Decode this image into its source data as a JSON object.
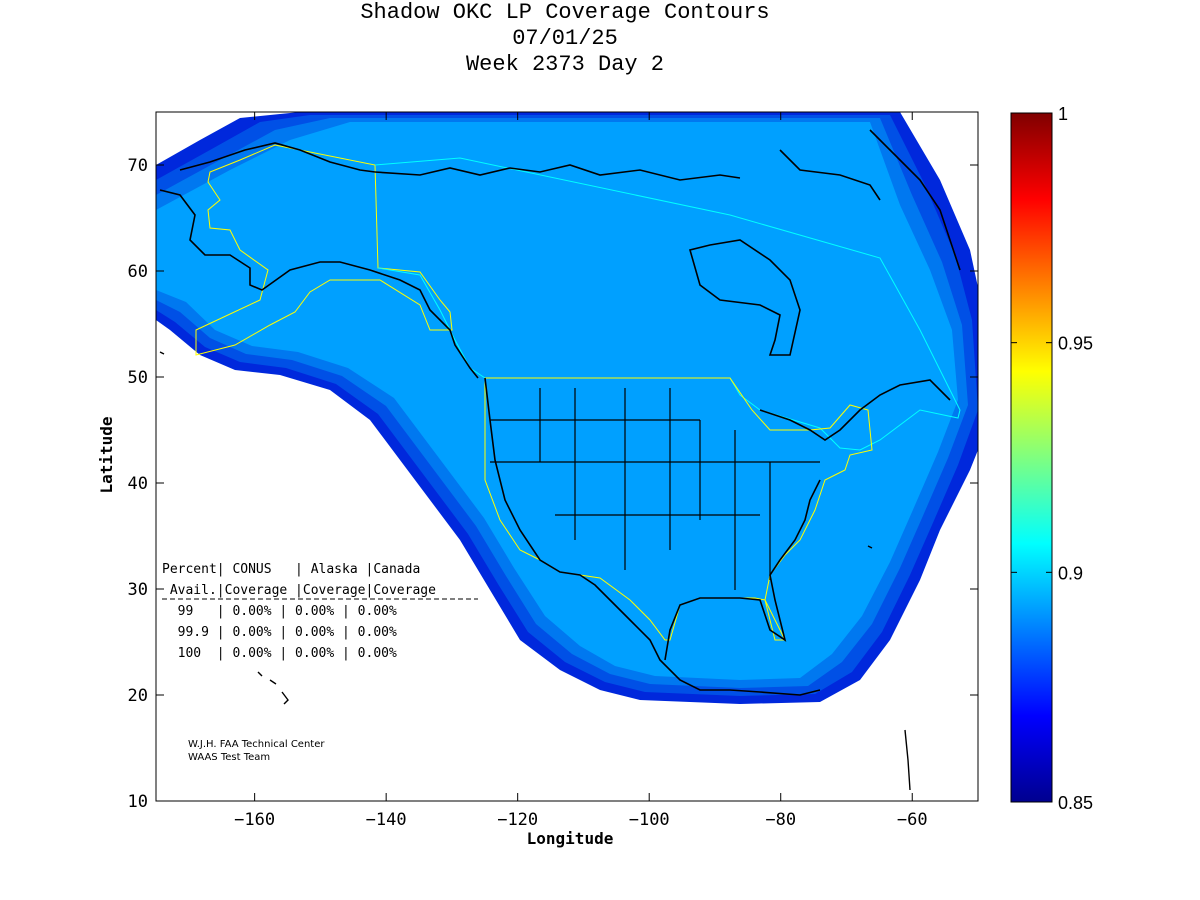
{
  "title": {
    "line1": "Shadow OKC LP Coverage Contours",
    "line2": "07/01/25",
    "line3": "Week 2373 Day 2"
  },
  "axes": {
    "xlabel": "Longitude",
    "ylabel": "Latitude",
    "xlim": [
      -175,
      -50
    ],
    "ylim": [
      10,
      75
    ],
    "xticks": [
      -160,
      -140,
      -120,
      -100,
      -80,
      -60
    ],
    "yticks": [
      10,
      20,
      30,
      40,
      50,
      60,
      70
    ]
  },
  "colorbar": {
    "min": 0.85,
    "max": 1,
    "ticks": [
      "0.85",
      "0.9",
      "0.95",
      "1"
    ],
    "tick_values": [
      0.85,
      0.9,
      0.95,
      1.0
    ]
  },
  "coverage_table": {
    "header1": "Percent| CONUS   | Alaska |Canada",
    "header2": " Avail.|Coverage |Coverage|Coverage",
    "rows": [
      "  99   | 0.00% | 0.00% | 0.00%",
      "  99.9 | 0.00% | 0.00% | 0.00%",
      "  100  | 0.00% | 0.00% | 0.00%"
    ]
  },
  "credits": {
    "line1": "W.J.H. FAA Technical Center",
    "line2": "WAAS Test Team"
  },
  "colors": {
    "coverage_fill": "#00a0ff",
    "band1": "#0078f0",
    "band2": "#0050e6",
    "band3": "#0028dc",
    "service_boundary": "#ffff00",
    "canada_boundary": "#00ffff",
    "coast": "#000000"
  }
}
